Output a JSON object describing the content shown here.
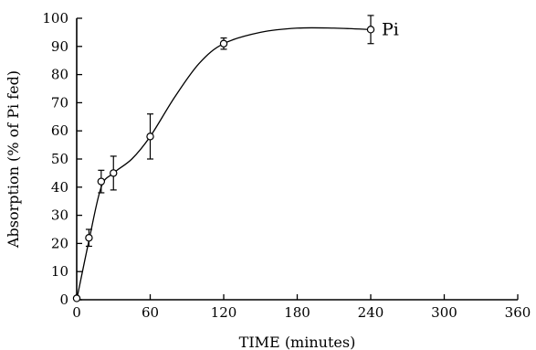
{
  "chart_data": {
    "type": "line",
    "title": "",
    "xlabel": "TIME (minutes)",
    "ylabel": "Absorption (% of Pi fed)",
    "xlim": [
      0,
      360
    ],
    "ylim": [
      0,
      100
    ],
    "x_ticks": [
      0,
      60,
      120,
      180,
      240,
      300,
      360
    ],
    "y_ticks": [
      0,
      10,
      20,
      30,
      40,
      50,
      60,
      70,
      80,
      90,
      100
    ],
    "grid": false,
    "series": [
      {
        "name": "Pi",
        "marker": "open-circle",
        "x": [
          0,
          10,
          20,
          30,
          60,
          120,
          240
        ],
        "y": [
          0.5,
          22,
          42,
          45,
          58,
          91,
          96
        ],
        "error": [
          0,
          3,
          4,
          6,
          8,
          2,
          5
        ]
      }
    ],
    "curve": {
      "x": [
        0,
        10,
        20,
        30,
        45,
        60,
        80,
        100,
        120,
        150,
        180,
        210,
        240
      ],
      "y": [
        0,
        21,
        40,
        45,
        50,
        58,
        72,
        84,
        91,
        95,
        96.5,
        96.5,
        96
      ]
    }
  }
}
